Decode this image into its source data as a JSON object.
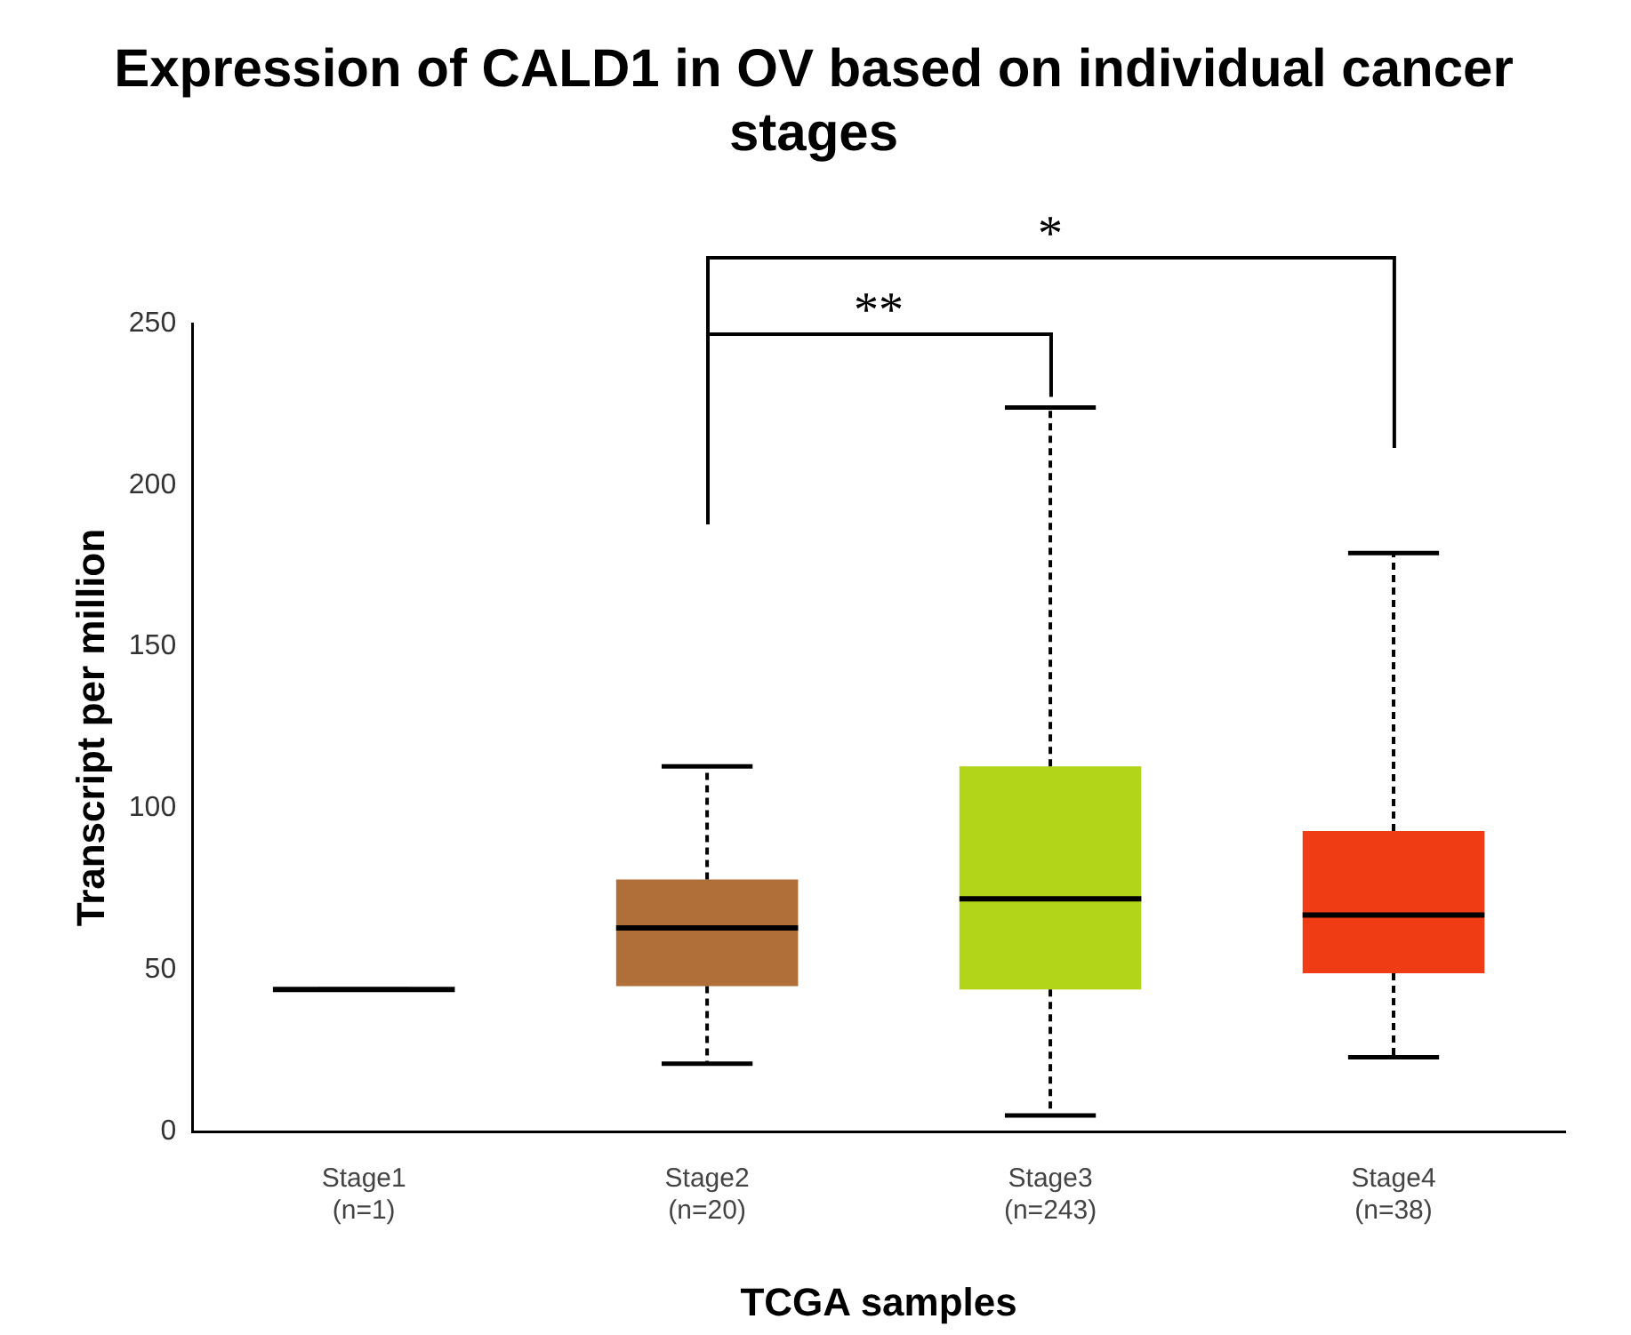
{
  "chart_data": {
    "type": "box",
    "title": "Expression of CALD1 in OV based on individual cancer stages",
    "xlabel": "TCGA samples",
    "ylabel": "Transcript per million",
    "categories": [
      "Stage1\n(n=1)",
      "Stage2\n(n=20)",
      "Stage3\n(n=243)",
      "Stage4\n(n=38)"
    ],
    "colors": [
      "#000000",
      "#b06f38",
      "#b2d419",
      "#f03c14"
    ],
    "boxes": [
      {
        "low": 44,
        "q1": 44,
        "median": 44,
        "q3": 44,
        "high": 44
      },
      {
        "low": 21,
        "q1": 45,
        "median": 63,
        "q3": 78,
        "high": 113
      },
      {
        "low": 5,
        "q1": 44,
        "median": 72,
        "q3": 113,
        "high": 224
      },
      {
        "low": 23,
        "q1": 49,
        "median": 67,
        "q3": 93,
        "high": 179
      }
    ],
    "ylim": [
      0,
      250
    ],
    "yticks": [
      0,
      50,
      100,
      150,
      200,
      250
    ],
    "grid": false,
    "legend": false,
    "annotations": [
      "**",
      "*"
    ]
  }
}
